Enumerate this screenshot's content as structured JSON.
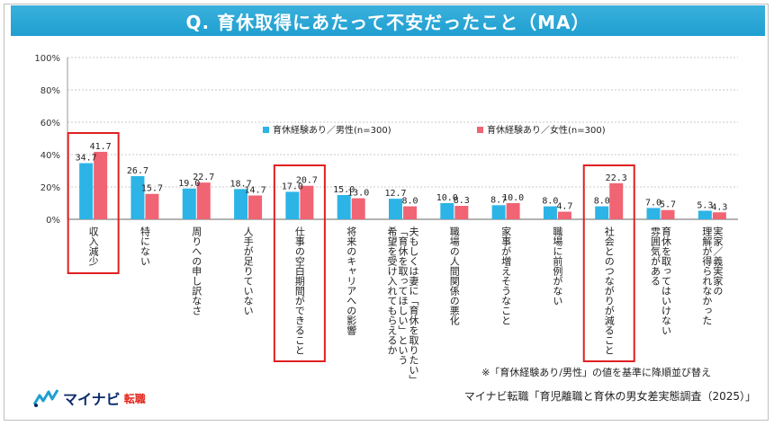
{
  "title": "Q. 育休取得にあたって不安だったこと（MA）",
  "note": "※「育休経験あり/男性」の値を基準に降順並び替え",
  "source": "マイナビ転職「育児離職と育休の男女差実態調査（2025）」",
  "logo": {
    "name": "マイナビ",
    "sub": "転職"
  },
  "colors": {
    "male": "#2cb4e6",
    "female": "#f06474",
    "highlight": "#e02020",
    "grid": "#c8c8c8"
  },
  "chart_data": {
    "type": "bar",
    "categories": [
      "収入減少",
      "特にない",
      "周りへの申し訳なさ",
      "人手が足りていない",
      "仕事の空白期間ができること",
      "将来のキャリアへの影響",
      "夫もしくは妻に「育休を取りたい」「育休を取ってほしい」という希望を受け入れてもらえるか",
      "職場の人間関係の悪化",
      "家事が増えそうなこと",
      "職場に前例がない",
      "社会とのつながりが減ること",
      "育休を取ってはいけない雰囲気がある",
      "実家／義実家の理解が得られなかった"
    ],
    "label_lines": [
      [
        "収入減少"
      ],
      [
        "特にない"
      ],
      [
        "周りへの申し訳なさ"
      ],
      [
        "人手が足りていない"
      ],
      [
        "仕事の空白期間ができること"
      ],
      [
        "将来のキャリアへの影響"
      ],
      [
        "夫もしくは妻に「育休を取りたい」",
        "「育休を取ってほしい」という",
        "希望を受け入れてもらえるか"
      ],
      [
        "職場の人間関係の悪化"
      ],
      [
        "家事が増えそうなこと"
      ],
      [
        "職場に前例がない"
      ],
      [
        "社会とのつながりが減ること"
      ],
      [
        "育休を取ってはいけない",
        "雰囲気がある"
      ],
      [
        "実家／義実家の",
        "理解が得られなかった"
      ]
    ],
    "series": [
      {
        "name": "育休経験あり／男性(n=300)",
        "values": [
          34.7,
          26.7,
          19.0,
          18.7,
          17.0,
          15.0,
          12.7,
          10.0,
          8.7,
          8.0,
          8.0,
          7.0,
          5.3
        ]
      },
      {
        "name": "育休経験あり／女性(n=300)",
        "values": [
          41.7,
          15.7,
          22.7,
          14.7,
          20.7,
          13.0,
          8.0,
          8.3,
          10.0,
          4.7,
          22.3,
          5.7,
          4.3
        ]
      }
    ],
    "ylim": [
      0,
      100
    ],
    "yticks": [
      "0%",
      "20%",
      "40%",
      "60%",
      "80%",
      "100%"
    ],
    "highlighted": [
      "収入減少",
      "仕事の空白期間ができること",
      "社会とのつながりが減ること"
    ],
    "legend_position": "center"
  }
}
